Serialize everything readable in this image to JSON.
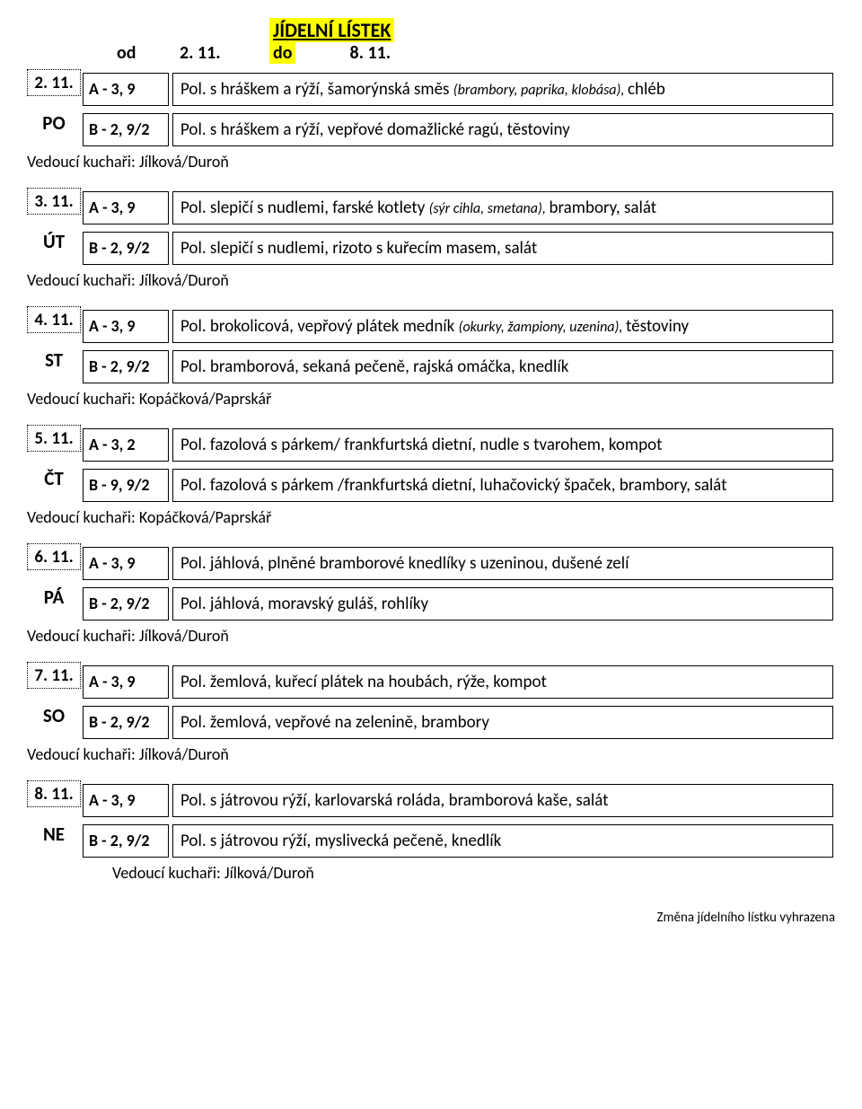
{
  "title": "JÍDELNÍ LÍSTEK",
  "od_label": "od",
  "do_label": "do",
  "date_from": "2. 11.",
  "date_to": "8. 11.",
  "footer": "Změna jídelního lístku vyhrazena",
  "days": [
    {
      "date": "2. 11.",
      "dow": "PO",
      "a_code": "A - 3, 9",
      "a_main": "Pol. s hráškem a rýží, šamorýnská směs ",
      "a_note": "(brambory, paprika, klobása), ",
      "a_tail": "chléb",
      "b_code": "B - 2, 9/2",
      "b_main": "Pol. s hráškem a rýží, vepřové domažlické ragú, těstoviny",
      "chef": "Vedoucí kuchaři: Jílková/Duroň",
      "chef_indent": false
    },
    {
      "date": "3. 11.",
      "dow": "ÚT",
      "a_code": "A - 3, 9",
      "a_main": "Pol. slepičí s nudlemi, farské kotlety ",
      "a_note": "(sýr cihla, smetana), ",
      "a_tail": "brambory, salát",
      "b_code": "B - 2, 9/2",
      "b_main": "Pol. slepičí s nudlemi, rizoto s kuřecím masem, salát",
      "chef": "Vedoucí kuchaři: Jílková/Duroň",
      "chef_indent": false
    },
    {
      "date": "4. 11.",
      "dow": "ST",
      "a_code": "A - 3, 9",
      "a_main": "Pol. brokolicová, vepřový plátek medník ",
      "a_note": "(okurky, žampiony, uzenina), ",
      "a_tail": "těstoviny",
      "b_code": "B - 2, 9/2",
      "b_main": "Pol. bramborová, sekaná pečeně, rajská omáčka, knedlík",
      "chef": "Vedoucí kuchaři: Kopáčková/Paprskář",
      "chef_indent": false
    },
    {
      "date": "5. 11.",
      "dow": "ČT",
      "a_code": "A - 3, 2",
      "a_main": "Pol. fazolová s párkem/ frankfurtská dietní, nudle s tvarohem, kompot",
      "a_note": "",
      "a_tail": "",
      "b_code": "B - 9, 9/2",
      "b_main": "Pol. fazolová s párkem /frankfurtská dietní, luhačovický špaček, brambory, salát",
      "chef": "Vedoucí kuchaři: Kopáčková/Paprskář",
      "chef_indent": false
    },
    {
      "date": "6. 11.",
      "dow": "PÁ",
      "a_code": "A - 3, 9",
      "a_main": "Pol. jáhlová, plněné bramborové knedlíky s uzeninou, dušené zelí",
      "a_note": "",
      "a_tail": "",
      "b_code": "B - 2, 9/2",
      "b_main": "Pol. jáhlová, moravský guláš, rohlíky",
      "chef": "Vedoucí kuchaři: Jílková/Duroň",
      "chef_indent": false
    },
    {
      "date": "7. 11.",
      "dow": "SO",
      "a_code": "A - 3, 9",
      "a_main": "Pol. žemlová, kuřecí plátek na houbách, rýže, kompot",
      "a_note": "",
      "a_tail": "",
      "b_code": "B - 2, 9/2",
      "b_main": "Pol. žemlová, vepřové na zelenině, brambory",
      "chef": "Vedoucí kuchaři: Jílková/Duroň",
      "chef_indent": false
    },
    {
      "date": "8. 11.",
      "dow": "NE",
      "a_code": "A - 3, 9",
      "a_main": "Pol. s játrovou rýží, karlovarská roláda, bramborová kaše, salát",
      "a_note": "",
      "a_tail": "",
      "b_code": "B - 2, 9/2",
      "b_main": "Pol. s játrovou rýží, myslivecká pečeně, knedlík",
      "chef": "Vedoucí kuchaři: Jílková/Duroň",
      "chef_indent": true
    }
  ]
}
